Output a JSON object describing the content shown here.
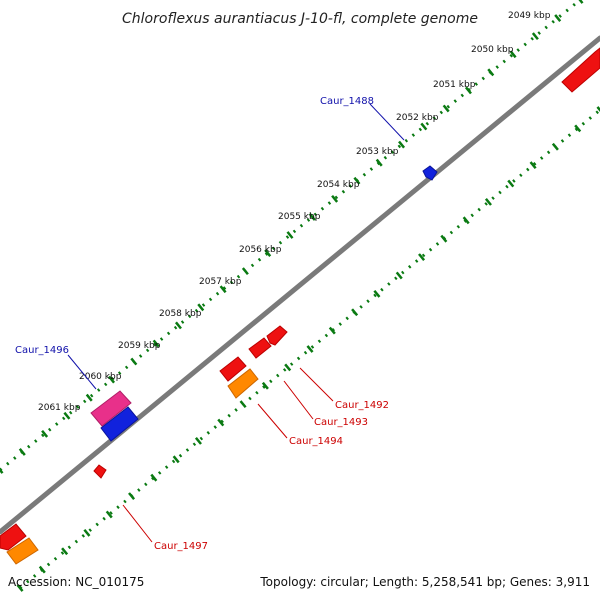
{
  "title": "Chloroflexus aurantiacus J-10-fl, complete genome",
  "footer": {
    "accession": "Accession: NC_010175",
    "summary": "Topology: circular; Length: 5,258,541 bp; Genes: 3,911"
  },
  "kbp_ticks": [
    "2049 kbp",
    "2050 kbp",
    "2051 kbp",
    "2052 kbp",
    "2053 kbp",
    "2054 kbp",
    "2055 kbp",
    "2056 kbp",
    "2057 kbp",
    "2058 kbp",
    "2059 kbp",
    "2060 kbp",
    "2061 kbp"
  ],
  "gene_labels": [
    "Caur_1488",
    "Caur_1492",
    "Caur_1493",
    "Caur_1494",
    "Caur_1496",
    "Caur_1497"
  ],
  "colors": {
    "backbone": "#8a8a8a",
    "ruler": "#0a7a12",
    "gene_red": "#ee1111",
    "gene_blue": "#1122dd",
    "gene_magenta": "#e8308a",
    "gene_orange": "#ff8800",
    "label_blue": "#1010aa",
    "label_red": "#cc0000"
  }
}
